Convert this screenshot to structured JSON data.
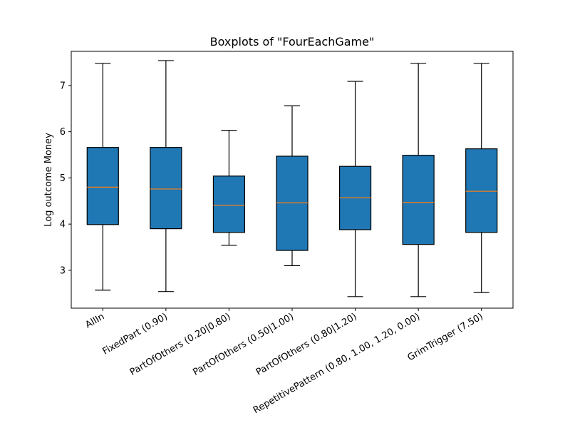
{
  "chart_data": {
    "type": "boxplot",
    "title": "Boxplots of \"FourEachGame\"",
    "xlabel": "",
    "ylabel": "Log outcome Money",
    "ylim": [
      2.18,
      7.74
    ],
    "yticks": [
      3,
      4,
      5,
      6,
      7
    ],
    "grid": false,
    "box_color": "#1f77b4",
    "median_color": "#ff7f0e",
    "categories": [
      "AllIn",
      "FixedPart (0.90)",
      "PartOfOthers (0.20|0.80)",
      "PartOfOthers (0.50|1.00)",
      "PartOfOthers (0.80|1.20)",
      "RepetitivePattern (0.80, 1.00, 1.20, 0.00)",
      "GrimTrigger (7.50)"
    ],
    "boxes": [
      {
        "whisker_low": 2.57,
        "q1": 3.99,
        "median": 4.8,
        "q3": 5.66,
        "whisker_high": 7.48
      },
      {
        "whisker_low": 2.54,
        "q1": 3.9,
        "median": 4.76,
        "q3": 5.66,
        "whisker_high": 7.54
      },
      {
        "whisker_low": 3.54,
        "q1": 3.82,
        "median": 4.41,
        "q3": 5.04,
        "whisker_high": 6.03
      },
      {
        "whisker_low": 3.1,
        "q1": 3.43,
        "median": 4.46,
        "q3": 5.47,
        "whisker_high": 6.56
      },
      {
        "whisker_low": 2.43,
        "q1": 3.88,
        "median": 4.57,
        "q3": 5.25,
        "whisker_high": 7.09
      },
      {
        "whisker_low": 2.43,
        "q1": 3.56,
        "median": 4.47,
        "q3": 5.49,
        "whisker_high": 7.48
      },
      {
        "whisker_low": 2.52,
        "q1": 3.82,
        "median": 4.71,
        "q3": 5.63,
        "whisker_high": 7.48
      }
    ]
  }
}
